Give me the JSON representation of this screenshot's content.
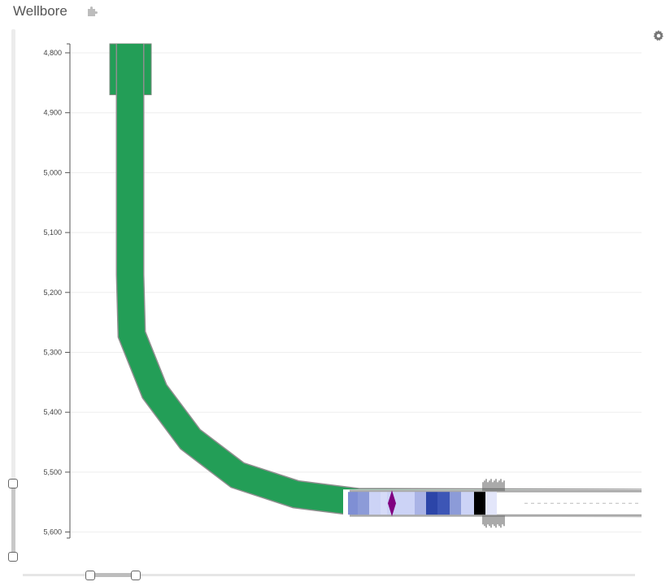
{
  "header": {
    "title": "Wellbore",
    "plugin_icon": "puzzle-icon",
    "settings_icon": "gear-icon"
  },
  "axis": {
    "ticks": [
      "4,800",
      "4,900",
      "5,000",
      "5,100",
      "5,200",
      "5,300",
      "5,400",
      "5,500",
      "5,600"
    ],
    "min": 4785,
    "max": 5615
  },
  "colors": {
    "wellbore": "#239e57",
    "casing_outline": "#9e9e9e",
    "grid": "#eeeeee",
    "packer": "#800080",
    "segment_light": "#ccd3f6",
    "segment_mid": "#8c9bd8",
    "segment_dark": "#2c45a8",
    "segment_black": "#000000"
  },
  "wellbore": {
    "path": [
      [
        160,
        4785
      ],
      [
        160,
        5170
      ],
      [
        162,
        5270
      ],
      [
        190,
        5365
      ],
      [
        234,
        5445
      ],
      [
        292,
        5505
      ],
      [
        364,
        5537
      ],
      [
        440,
        5550
      ],
      [
        905,
        5552
      ]
    ],
    "surface_casing": {
      "from": 4785,
      "to": 4870,
      "width_label": ""
    },
    "segments": [
      {
        "color": "#7f8fd4"
      },
      {
        "color": "#8c9bd8"
      },
      {
        "color": "#ccd3f6"
      },
      {
        "color": "#d6dbf8"
      },
      {
        "color": "#ccd3f6"
      },
      {
        "color": "#a9b3e6"
      },
      {
        "color": "#2c45a8"
      },
      {
        "color": "#3d56b6"
      },
      {
        "color": "#8c9bd8"
      },
      {
        "color": "#ccd3f6"
      },
      {
        "color": "#000000"
      },
      {
        "color": "#e3e6fa"
      }
    ]
  },
  "sliders": {
    "vertical": {
      "from": 0.86,
      "to": 1.0
    },
    "horizontal": {
      "from": 0.11,
      "to": 0.19
    }
  }
}
